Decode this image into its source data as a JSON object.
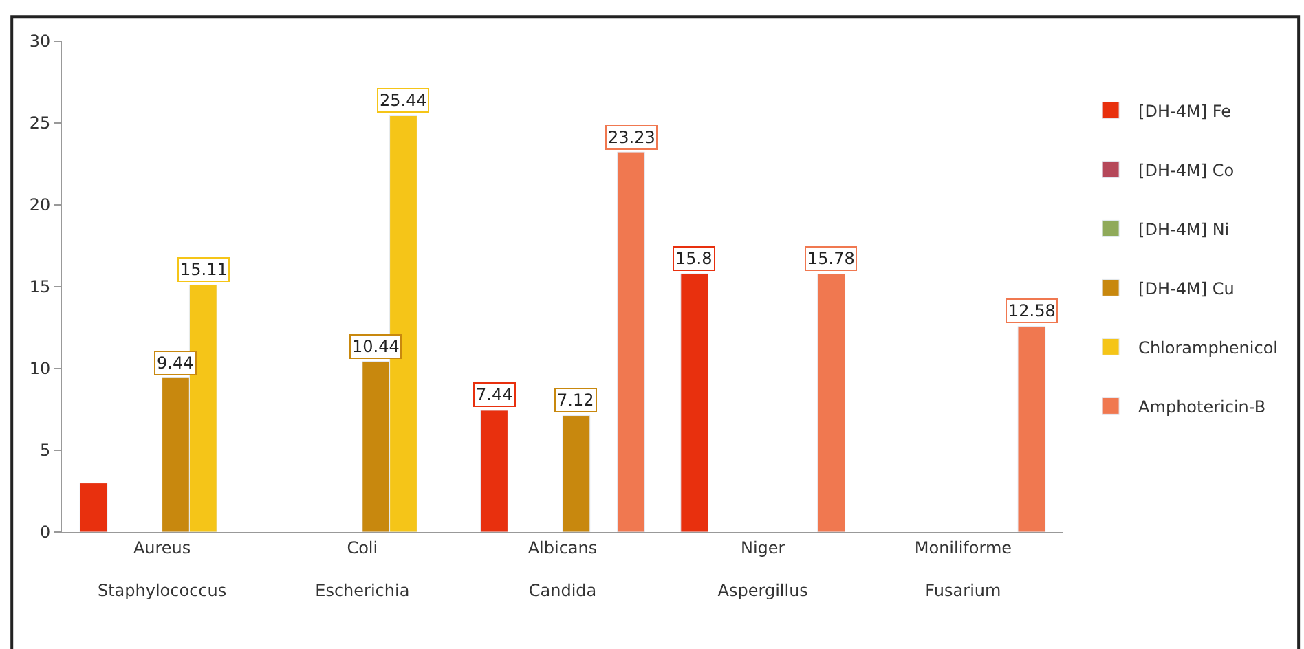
{
  "chart_data": {
    "type": "bar",
    "categories": [
      "Aureus\nStaphylococcus",
      "Coli\nEscherichia",
      "Albicans\nCandida",
      "Niger\nAspergillus",
      "Moniliforme\nFusarium"
    ],
    "series": [
      {
        "name": "[DH-4M] Fe",
        "color": "#e8300e",
        "values": [
          3,
          null,
          7.44,
          15.8,
          null
        ],
        "value_labels": [
          null,
          null,
          "7.44",
          "15.8",
          null
        ]
      },
      {
        "name": "[DH-4M] Co",
        "color": "#b5475a",
        "values": [
          null,
          null,
          null,
          null,
          null
        ]
      },
      {
        "name": "[DH-4M] Ni",
        "color": "#8faa5a",
        "values": [
          null,
          null,
          null,
          null,
          null
        ]
      },
      {
        "name": "[DH-4M] Cu",
        "color": "#c8880e",
        "values": [
          9.44,
          10.44,
          7.12,
          null,
          null
        ],
        "value_labels": [
          "9.44",
          "10.44",
          "7.12",
          null,
          null
        ]
      },
      {
        "name": "Chloramphenicol",
        "color": "#f5c518",
        "values": [
          15.11,
          25.44,
          null,
          null,
          null
        ],
        "value_labels": [
          "15.11",
          "25.44",
          null,
          null,
          null
        ]
      },
      {
        "name": "Amphotericin-B",
        "color": "#f07850",
        "values": [
          null,
          null,
          23.23,
          15.78,
          12.58
        ],
        "value_labels": [
          null,
          null,
          "23.23",
          "15.78",
          "12.58"
        ]
      }
    ],
    "ylim": [
      0,
      30
    ],
    "yticks": [
      0,
      5,
      10,
      15,
      20,
      25,
      30
    ],
    "legend": "right"
  }
}
